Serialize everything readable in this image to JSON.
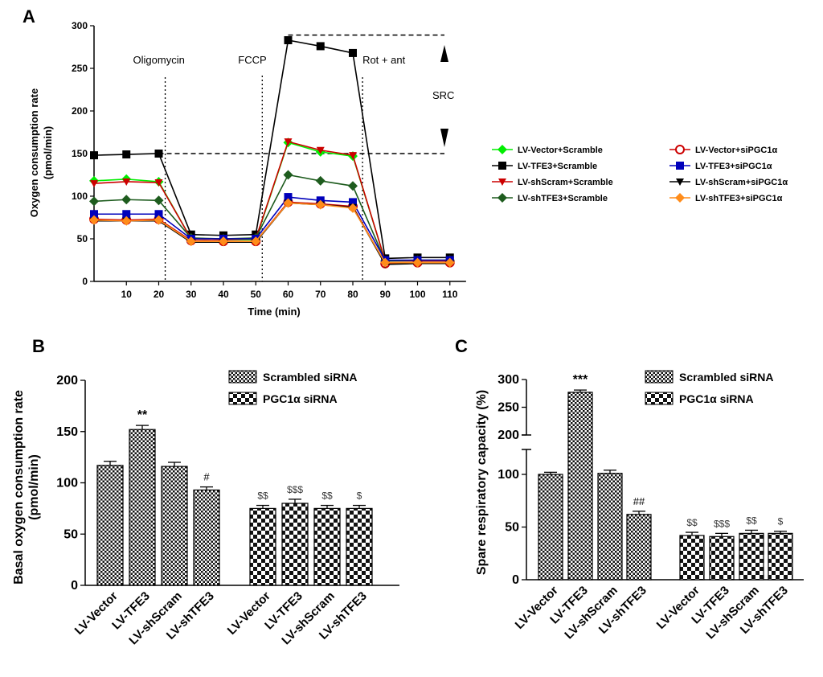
{
  "chart_data": [
    {
      "panel": "A",
      "type": "line",
      "xlabel": "Time (min)",
      "ylabel": "Oxygen consumption rate (pmol/min)",
      "ylabel_lines": [
        "Oxygen consumption rate",
        "(pmol/min)"
      ],
      "xlim": [
        0,
        115
      ],
      "ylim": [
        0,
        300
      ],
      "xticks": [
        10,
        20,
        30,
        40,
        50,
        60,
        70,
        80,
        90,
        100,
        110
      ],
      "yticks": [
        0,
        50,
        100,
        150,
        200,
        250,
        300
      ],
      "x": [
        0,
        10,
        20,
        30,
        40,
        50,
        60,
        70,
        80,
        90,
        100,
        110
      ],
      "annotations": [
        {
          "text": "Oligomycin",
          "x": 22
        },
        {
          "text": "FCCP",
          "x": 52
        },
        {
          "text": "Rot + ant",
          "x": 83
        }
      ],
      "src_label": "SRC",
      "src_lines": {
        "baseline": 150,
        "max": 289
      },
      "series": [
        {
          "name": "LV-Vector+Scramble",
          "color": "#00ee00",
          "marker": "diamond",
          "values": [
            118,
            120,
            117,
            50,
            49,
            49,
            163,
            152,
            147,
            24,
            24,
            24
          ]
        },
        {
          "name": "LV-TFE3+Scramble",
          "color": "#000000",
          "marker": "square",
          "values": [
            148,
            149,
            150,
            55,
            54,
            55,
            283,
            276,
            268,
            27,
            28,
            28
          ]
        },
        {
          "name": "LV-shScram+Scramble",
          "color": "#cc0000",
          "marker": "triangle-down",
          "values": [
            115,
            117,
            116,
            50,
            49,
            50,
            164,
            154,
            148,
            24,
            24,
            24
          ]
        },
        {
          "name": "LV-shTFE3+Scramble",
          "color": "#1e5c1e",
          "marker": "diamond",
          "values": [
            94,
            96,
            95,
            51,
            50,
            51,
            125,
            118,
            112,
            24,
            25,
            25
          ]
        },
        {
          "name": "LV-Vector+siPGC1α",
          "color": "#cc0000",
          "marker": "circle",
          "values": [
            73,
            72,
            73,
            48,
            47,
            47,
            93,
            91,
            88,
            21,
            22,
            22
          ]
        },
        {
          "name": "LV-TFE3+siPGC1α",
          "color": "#0000bb",
          "marker": "square",
          "values": [
            79,
            79,
            79,
            50,
            50,
            50,
            99,
            95,
            93,
            25,
            25,
            25
          ]
        },
        {
          "name": "LV-shScram+siPGC1α",
          "color": "#000000",
          "marker": "triangle-down",
          "values": [
            71,
            71,
            71,
            46,
            46,
            46,
            92,
            90,
            87,
            20,
            21,
            21
          ]
        },
        {
          "name": "LV-shTFE3+siPGC1α",
          "color": "#ff8c1a",
          "marker": "diamond",
          "values": [
            72,
            71,
            72,
            47,
            47,
            47,
            92,
            90,
            86,
            22,
            22,
            22
          ]
        }
      ]
    },
    {
      "panel": "B",
      "type": "bar",
      "ylabel": "Basal oxygen consumption rate (pmol/min)",
      "ylabel_lines": [
        "Basal oxygen consumption rate",
        "(pmol/min)"
      ],
      "ylim": [
        0,
        200
      ],
      "yticks": [
        0,
        50,
        100,
        150,
        200
      ],
      "categories": [
        "LV-Vector",
        "LV-TFE3",
        "LV-shScram",
        "LV-shTFE3",
        "LV-Vector",
        "LV-TFE3",
        "LV-shScram",
        "LV-shTFE3"
      ],
      "groups": [
        "Scrambled siRNA",
        "Scrambled siRNA",
        "Scrambled siRNA",
        "Scrambled siRNA",
        "PGC1α siRNA",
        "PGC1α siRNA",
        "PGC1α siRNA",
        "PGC1α siRNA"
      ],
      "values": [
        117,
        152,
        116,
        93,
        75,
        80,
        75,
        75
      ],
      "errors": [
        4,
        4,
        4,
        3,
        3,
        4,
        3,
        3
      ],
      "significance": [
        "",
        "**",
        "",
        "#",
        "$$",
        "$$$",
        "$$",
        "$"
      ],
      "legend": [
        "Scrambled siRNA",
        "PGC1α siRNA"
      ]
    },
    {
      "panel": "C",
      "type": "bar",
      "ylabel": "Spare respiratory capacity (%)",
      "ylim": [
        0,
        300
      ],
      "axis_break": [
        120,
        200
      ],
      "yticks": [
        0,
        50,
        100,
        200,
        250,
        300
      ],
      "categories": [
        "LV-Vector",
        "LV-TFE3",
        "LV-shScram",
        "LV-shTFE3",
        "LV-Vector",
        "LV-TFE3",
        "LV-shScram",
        "LV-shTFE3"
      ],
      "groups": [
        "Scrambled siRNA",
        "Scrambled siRNA",
        "Scrambled siRNA",
        "Scrambled siRNA",
        "PGC1α siRNA",
        "PGC1α siRNA",
        "PGC1α siRNA",
        "PGC1α siRNA"
      ],
      "values": [
        100,
        277,
        101,
        62,
        42,
        41,
        44,
        44
      ],
      "errors": [
        2,
        4,
        3,
        3,
        3,
        3,
        3,
        2
      ],
      "significance": [
        "",
        "***",
        "",
        "##",
        "$$",
        "$$$",
        "$$",
        "$"
      ],
      "legend": [
        "Scrambled siRNA",
        "PGC1α siRNA"
      ]
    }
  ],
  "panel_labels": {
    "a": "A",
    "b": "B",
    "c": "C"
  }
}
